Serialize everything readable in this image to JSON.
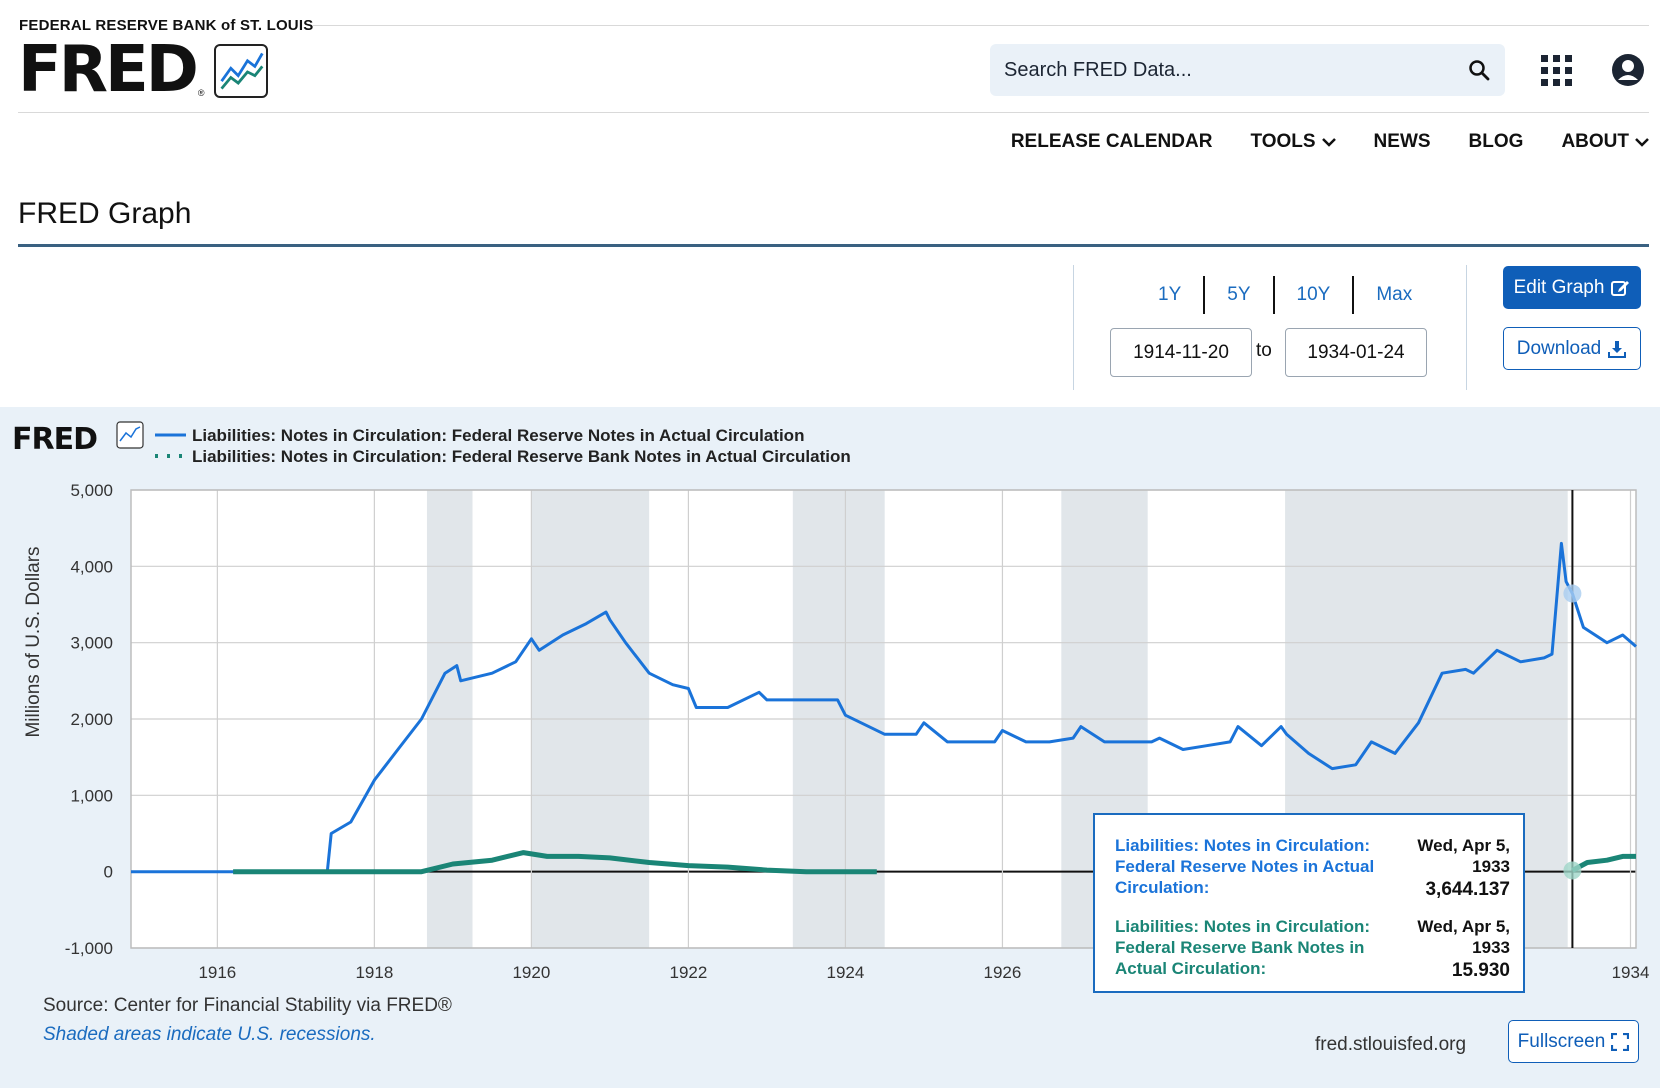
{
  "header": {
    "org": "FEDERAL RESERVE BANK of ST. LOUIS",
    "logo_text": "FRED",
    "logo_reg": "®",
    "search_placeholder": "Search FRED Data...",
    "icons": [
      "search-icon",
      "apps-grid-icon",
      "user-account-icon"
    ]
  },
  "nav": {
    "items": [
      {
        "label": "RELEASE CALENDAR",
        "dropdown": false
      },
      {
        "label": "TOOLS",
        "dropdown": true
      },
      {
        "label": "NEWS",
        "dropdown": false
      },
      {
        "label": "BLOG",
        "dropdown": false
      },
      {
        "label": "ABOUT",
        "dropdown": true
      }
    ]
  },
  "page": {
    "title": "FRED Graph"
  },
  "controls": {
    "ranges": [
      "1Y",
      "5Y",
      "10Y",
      "Max"
    ],
    "date_from": "1914-11-20",
    "to_label": "to",
    "date_to": "1934-01-24",
    "edit_label": "Edit Graph",
    "download_label": "Download",
    "fullscreen_label": "Fullscreen"
  },
  "chart_footer": {
    "source": "Source: Center for Financial Stability via FRED®",
    "shaded_note": "Shaded areas indicate U.S. recessions.",
    "site": "fred.stlouisfed.org"
  },
  "tooltip": {
    "series1_label": "Liabilities: Notes in Circulation: Federal Reserve Notes in Actual Circulation:",
    "series1_date": "Wed, Apr 5, 1933",
    "series1_value": "3,644.137",
    "series2_label": "Liabilities: Notes in Circulation: Federal Reserve Bank Notes in Actual Circulation:",
    "series2_date": "Wed, Apr 5, 1933",
    "series2_value": "15.930"
  },
  "colors": {
    "series1": "#1a73d9",
    "series2": "#1a8576",
    "brand_blue": "#0f5eb8",
    "recession": "#e1e6ea",
    "panel_bg": "#e9f1f8"
  },
  "chart_data": {
    "type": "line",
    "ylabel": "Millions of U.S. Dollars",
    "ylim": [
      -1000,
      5000
    ],
    "yticks": [
      -1000,
      0,
      1000,
      2000,
      3000,
      4000,
      5000
    ],
    "ytick_labels": [
      "-1,000",
      "0",
      "1,000",
      "2,000",
      "3,000",
      "4,000",
      "5,000"
    ],
    "xlim": [
      1914.9,
      1934.07
    ],
    "xticks": [
      1916,
      1918,
      1920,
      1922,
      1924,
      1926,
      1934
    ],
    "xtick_labels": [
      "1916",
      "1918",
      "1920",
      "1922",
      "1924",
      "1926",
      "1934"
    ],
    "recessions": [
      [
        1918.67,
        1919.25
      ],
      [
        1920.0,
        1921.5
      ],
      [
        1923.33,
        1924.5
      ],
      [
        1926.75,
        1927.85
      ],
      [
        1929.6,
        1933.2
      ]
    ],
    "hover_x": 1933.26,
    "series": [
      {
        "name": "Liabilities: Notes in Circulation: Federal Reserve Notes in Actual Circulation",
        "style": "solid",
        "x": [
          1914.9,
          1917.4,
          1917.45,
          1917.7,
          1918.0,
          1918.3,
          1918.6,
          1918.9,
          1919.05,
          1919.1,
          1919.5,
          1919.8,
          1920.0,
          1920.1,
          1920.4,
          1920.7,
          1920.95,
          1921.0,
          1921.2,
          1921.5,
          1921.8,
          1922.0,
          1922.1,
          1922.5,
          1922.9,
          1923.0,
          1923.3,
          1923.6,
          1923.9,
          1924.0,
          1924.2,
          1924.5,
          1924.9,
          1925.0,
          1925.3,
          1925.6,
          1925.9,
          1926.0,
          1926.3,
          1926.6,
          1926.9,
          1927.0,
          1927.3,
          1927.6,
          1927.9,
          1928.0,
          1928.3,
          1928.6,
          1928.9,
          1929.0,
          1929.3,
          1929.55,
          1929.62,
          1929.9,
          1930.2,
          1930.5,
          1930.7,
          1931.0,
          1931.3,
          1931.6,
          1931.9,
          1932.0,
          1932.3,
          1932.6,
          1932.9,
          1933.0,
          1933.12,
          1933.18,
          1933.26,
          1933.4,
          1933.7,
          1933.9,
          1934.07
        ],
        "values": [
          0,
          0,
          500,
          650,
          1200,
          1600,
          2000,
          2600,
          2700,
          2500,
          2600,
          2750,
          3050,
          2900,
          3100,
          3250,
          3400,
          3300,
          3000,
          2600,
          2450,
          2400,
          2150,
          2150,
          2350,
          2250,
          2250,
          2250,
          2250,
          2050,
          1950,
          1800,
          1800,
          1950,
          1700,
          1700,
          1700,
          1850,
          1700,
          1700,
          1750,
          1900,
          1700,
          1700,
          1700,
          1750,
          1600,
          1650,
          1700,
          1900,
          1650,
          1900,
          1800,
          1550,
          1350,
          1400,
          1700,
          1550,
          1950,
          2600,
          2650,
          2600,
          2900,
          2750,
          2800,
          2850,
          4300,
          3800,
          3644,
          3200,
          3000,
          3100,
          2950
        ]
      },
      {
        "name": "Liabilities: Notes in Circulation: Federal Reserve Bank Notes in Actual Circulation",
        "style": "dotted",
        "x": [
          1916.2,
          1918.0,
          1918.6,
          1919.0,
          1919.5,
          1919.9,
          1920.2,
          1920.6,
          1921.0,
          1921.5,
          1922.0,
          1922.5,
          1923.0,
          1923.5,
          1924.0,
          1924.4
        ],
        "values": [
          0,
          0,
          0,
          100,
          150,
          250,
          200,
          200,
          180,
          120,
          80,
          60,
          20,
          0,
          0,
          0
        ]
      },
      {
        "name": "Liabilities: Notes in Circulation: Federal Reserve Bank Notes in Actual Circulation",
        "style": "dotted",
        "x": [
          1933.26,
          1933.45,
          1933.7,
          1933.9,
          1934.07
        ],
        "values": [
          16,
          120,
          150,
          200,
          200
        ]
      }
    ]
  }
}
